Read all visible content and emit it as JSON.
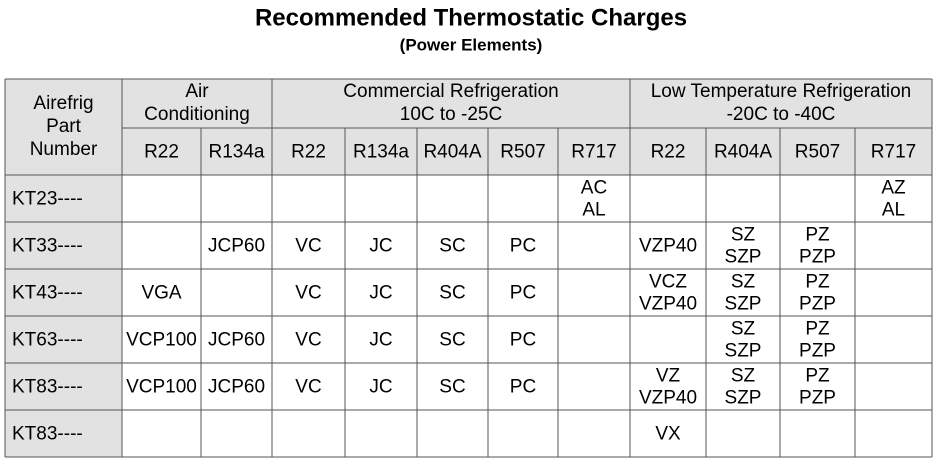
{
  "title": "Recommended Thermostatic Charges",
  "subtitle": "(Power Elements)",
  "table": {
    "header": {
      "part": [
        "Airefrig",
        "Part",
        "Number"
      ],
      "groups": [
        {
          "label": [
            "Air",
            "Conditioning"
          ],
          "columns": [
            "R22",
            "R134a"
          ]
        },
        {
          "label": [
            "Commercial Refrigeration",
            "10C to -25C"
          ],
          "columns": [
            "R22",
            "R134a",
            "R404A",
            "R507",
            "R717"
          ]
        },
        {
          "label": [
            "Low Temperature Refrigeration",
            "-20C to -40C"
          ],
          "columns": [
            "R22",
            "R404A",
            "R507",
            "R717"
          ]
        }
      ]
    },
    "rows": [
      {
        "part": "KT23----",
        "cells": [
          [],
          [],
          [],
          [],
          [],
          [],
          [
            "AC",
            "AL"
          ],
          [],
          [],
          [],
          [
            "AZ",
            "AL"
          ]
        ]
      },
      {
        "part": "KT33----",
        "cells": [
          [],
          [
            "JCP60"
          ],
          [
            "VC"
          ],
          [
            "JC"
          ],
          [
            "SC"
          ],
          [
            "PC"
          ],
          [],
          [
            "VZP40"
          ],
          [
            "SZ",
            "SZP"
          ],
          [
            "PZ",
            "PZP"
          ],
          []
        ]
      },
      {
        "part": "KT43----",
        "cells": [
          [
            "VGA"
          ],
          [],
          [
            "VC"
          ],
          [
            "JC"
          ],
          [
            "SC"
          ],
          [
            "PC"
          ],
          [],
          [
            "VCZ",
            "VZP40"
          ],
          [
            "SZ",
            "SZP"
          ],
          [
            "PZ",
            "PZP"
          ],
          []
        ]
      },
      {
        "part": "KT63----",
        "cells": [
          [
            "VCP100"
          ],
          [
            "JCP60"
          ],
          [
            "VC"
          ],
          [
            "JC"
          ],
          [
            "SC"
          ],
          [
            "PC"
          ],
          [],
          [],
          [
            "SZ",
            "SZP"
          ],
          [
            "PZ",
            "PZP"
          ],
          []
        ]
      },
      {
        "part": "KT83----",
        "cells": [
          [
            "VCP100"
          ],
          [
            "JCP60"
          ],
          [
            "VC"
          ],
          [
            "JC"
          ],
          [
            "SC"
          ],
          [
            "PC"
          ],
          [],
          [
            "VZ",
            "VZP40"
          ],
          [
            "SZ",
            "SZP"
          ],
          [
            "PZ",
            "PZP"
          ],
          []
        ]
      },
      {
        "part": "KT83----",
        "cells": [
          [],
          [],
          [],
          [],
          [],
          [],
          [],
          [
            "VX"
          ],
          [],
          [],
          []
        ]
      }
    ]
  }
}
